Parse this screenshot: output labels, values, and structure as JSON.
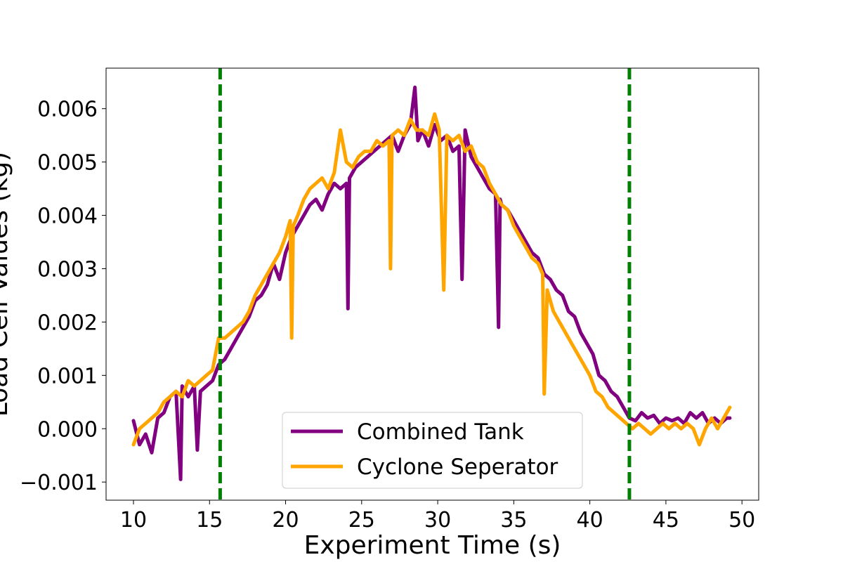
{
  "chart_data": {
    "type": "line",
    "title": "",
    "xlabel": "Experiment Time (s)",
    "ylabel": "Load Cell Values (kg)",
    "xlim": [
      8.2,
      51.1
    ],
    "ylim": [
      -0.00134,
      0.00676
    ],
    "xticks": [
      10,
      15,
      20,
      25,
      30,
      35,
      40,
      45,
      50
    ],
    "xtick_labels": [
      "10",
      "15",
      "20",
      "25",
      "30",
      "35",
      "40",
      "45",
      "50"
    ],
    "yticks": [
      -0.001,
      0.0,
      0.001,
      0.002,
      0.003,
      0.004,
      0.005,
      0.006
    ],
    "ytick_labels": [
      "−0.001",
      "0.000",
      "0.001",
      "0.002",
      "0.003",
      "0.004",
      "0.005",
      "0.006"
    ],
    "grid": false,
    "legend": {
      "placement": "lower-center"
    },
    "vertical_lines": [
      {
        "x": 15.7,
        "color": "#008000",
        "style": "dashed"
      },
      {
        "x": 42.6,
        "color": "#008000",
        "style": "dashed"
      }
    ],
    "series": [
      {
        "name": "Combined Tank",
        "color": "#800080",
        "x": [
          10.0,
          10.4,
          10.8,
          11.2,
          11.6,
          12.0,
          12.4,
          12.8,
          13.1,
          13.2,
          13.6,
          14.0,
          14.2,
          14.4,
          14.8,
          15.2,
          15.6,
          16.0,
          16.4,
          16.8,
          17.2,
          17.6,
          18.0,
          18.4,
          18.8,
          19.2,
          19.6,
          20.0,
          20.4,
          20.8,
          21.2,
          21.6,
          22.0,
          22.4,
          22.8,
          23.2,
          23.6,
          24.0,
          24.1,
          24.2,
          24.6,
          25.0,
          25.4,
          25.8,
          26.2,
          26.6,
          27.0,
          27.4,
          27.8,
          28.2,
          28.5,
          28.7,
          29.0,
          29.4,
          29.8,
          30.2,
          30.6,
          31.0,
          31.4,
          31.6,
          31.8,
          32.2,
          32.6,
          33.0,
          33.4,
          33.8,
          34.0,
          34.1,
          34.2,
          34.6,
          35.0,
          35.4,
          35.8,
          36.2,
          36.6,
          37.0,
          37.4,
          37.8,
          38.2,
          38.6,
          39.0,
          39.4,
          39.8,
          40.2,
          40.6,
          41.0,
          41.4,
          41.8,
          42.2,
          42.6,
          43.0,
          43.4,
          43.8,
          44.2,
          44.6,
          45.0,
          45.4,
          45.8,
          46.2,
          46.6,
          47.0,
          47.4,
          47.8,
          48.2,
          48.6,
          49.0,
          49.2
        ],
        "y": [
          0.00015,
          -0.0003,
          -0.0001,
          -0.00045,
          0.0002,
          0.0003,
          0.0006,
          0.0007,
          -0.00095,
          0.0008,
          0.0006,
          0.0008,
          -0.0004,
          0.0007,
          0.0008,
          0.0009,
          0.0012,
          0.0013,
          0.0015,
          0.0017,
          0.0019,
          0.0021,
          0.0024,
          0.0025,
          0.0027,
          0.0031,
          0.0028,
          0.0033,
          0.0036,
          0.0038,
          0.004,
          0.0042,
          0.0043,
          0.0041,
          0.0044,
          0.0046,
          0.0045,
          0.0046,
          0.00225,
          0.0047,
          0.0049,
          0.005,
          0.0051,
          0.0052,
          0.0053,
          0.0054,
          0.0055,
          0.0052,
          0.0055,
          0.0057,
          0.0064,
          0.0054,
          0.0056,
          0.0053,
          0.0057,
          0.0054,
          0.0055,
          0.0052,
          0.0053,
          0.0028,
          0.0056,
          0.0051,
          0.0049,
          0.0047,
          0.0045,
          0.0044,
          0.0019,
          0.0043,
          0.0042,
          0.0041,
          0.0039,
          0.0037,
          0.0035,
          0.0033,
          0.0032,
          0.0029,
          0.0028,
          0.0026,
          0.0025,
          0.0022,
          0.0021,
          0.0018,
          0.0016,
          0.0014,
          0.001,
          0.0009,
          0.0007,
          0.0006,
          0.0004,
          0.0002,
          0.00015,
          0.0003,
          0.0002,
          0.00025,
          0.0001,
          0.0002,
          0.00015,
          0.0002,
          0.0001,
          0.0003,
          0.0002,
          0.0003,
          0.0001,
          0.0002,
          0.0001,
          0.0002,
          0.0002
        ]
      },
      {
        "name": "Cyclone Seperator",
        "color": "#FFA500",
        "x": [
          10.0,
          10.4,
          10.8,
          11.2,
          11.6,
          12.0,
          12.4,
          12.8,
          13.2,
          13.6,
          14.0,
          14.4,
          14.8,
          15.2,
          15.6,
          16.0,
          16.4,
          16.8,
          17.2,
          17.6,
          18.0,
          18.4,
          18.8,
          19.2,
          19.6,
          20.0,
          20.3,
          20.4,
          20.5,
          20.8,
          21.2,
          21.6,
          22.0,
          22.4,
          22.8,
          23.2,
          23.6,
          24.0,
          24.4,
          24.8,
          25.2,
          25.6,
          26.0,
          26.4,
          26.8,
          26.9,
          27.0,
          27.4,
          27.8,
          28.2,
          28.6,
          29.0,
          29.4,
          29.8,
          30.1,
          30.4,
          30.6,
          31.0,
          31.4,
          31.8,
          32.2,
          32.6,
          33.0,
          33.4,
          33.8,
          34.2,
          34.6,
          35.0,
          35.4,
          35.8,
          36.2,
          36.6,
          36.9,
          37.0,
          37.2,
          37.6,
          38.0,
          38.4,
          38.8,
          39.2,
          39.6,
          40.0,
          40.4,
          40.8,
          41.2,
          41.6,
          42.0,
          42.4,
          42.8,
          43.2,
          43.6,
          44.0,
          44.4,
          44.8,
          45.2,
          45.6,
          46.0,
          46.4,
          46.8,
          47.2,
          47.6,
          48.0,
          48.4,
          48.8,
          49.2
        ],
        "y": [
          -0.0003,
          0.0,
          0.0001,
          0.0002,
          0.0003,
          0.0005,
          0.0006,
          0.0007,
          0.0006,
          0.0009,
          0.0008,
          0.0009,
          0.001,
          0.0011,
          0.0017,
          0.0017,
          0.0018,
          0.0019,
          0.002,
          0.0022,
          0.0025,
          0.0027,
          0.0029,
          0.0031,
          0.0033,
          0.0036,
          0.0039,
          0.0017,
          0.0038,
          0.004,
          0.0043,
          0.0045,
          0.0046,
          0.0047,
          0.0045,
          0.0048,
          0.0056,
          0.005,
          0.0049,
          0.0051,
          0.0052,
          0.0052,
          0.0054,
          0.0053,
          0.0054,
          0.003,
          0.0055,
          0.0056,
          0.0055,
          0.0058,
          0.0056,
          0.0056,
          0.0055,
          0.0059,
          0.0056,
          0.0026,
          0.0055,
          0.0054,
          0.0055,
          0.0052,
          0.0053,
          0.005,
          0.0049,
          0.0046,
          0.0044,
          0.0042,
          0.0041,
          0.0038,
          0.0036,
          0.0034,
          0.0032,
          0.0031,
          0.0029,
          0.00065,
          0.0026,
          0.0022,
          0.002,
          0.0018,
          0.0016,
          0.0014,
          0.0012,
          0.001,
          0.0007,
          0.0006,
          0.0004,
          0.0003,
          0.0002,
          0.0001,
          0.0,
          0.0001,
          0.0,
          -0.0001,
          0.0,
          0.0001,
          0.0,
          0.0001,
          0.0,
          0.0001,
          0.0,
          -0.0003,
          0.0,
          0.0002,
          0.0,
          0.0002,
          0.0004
        ]
      }
    ]
  }
}
